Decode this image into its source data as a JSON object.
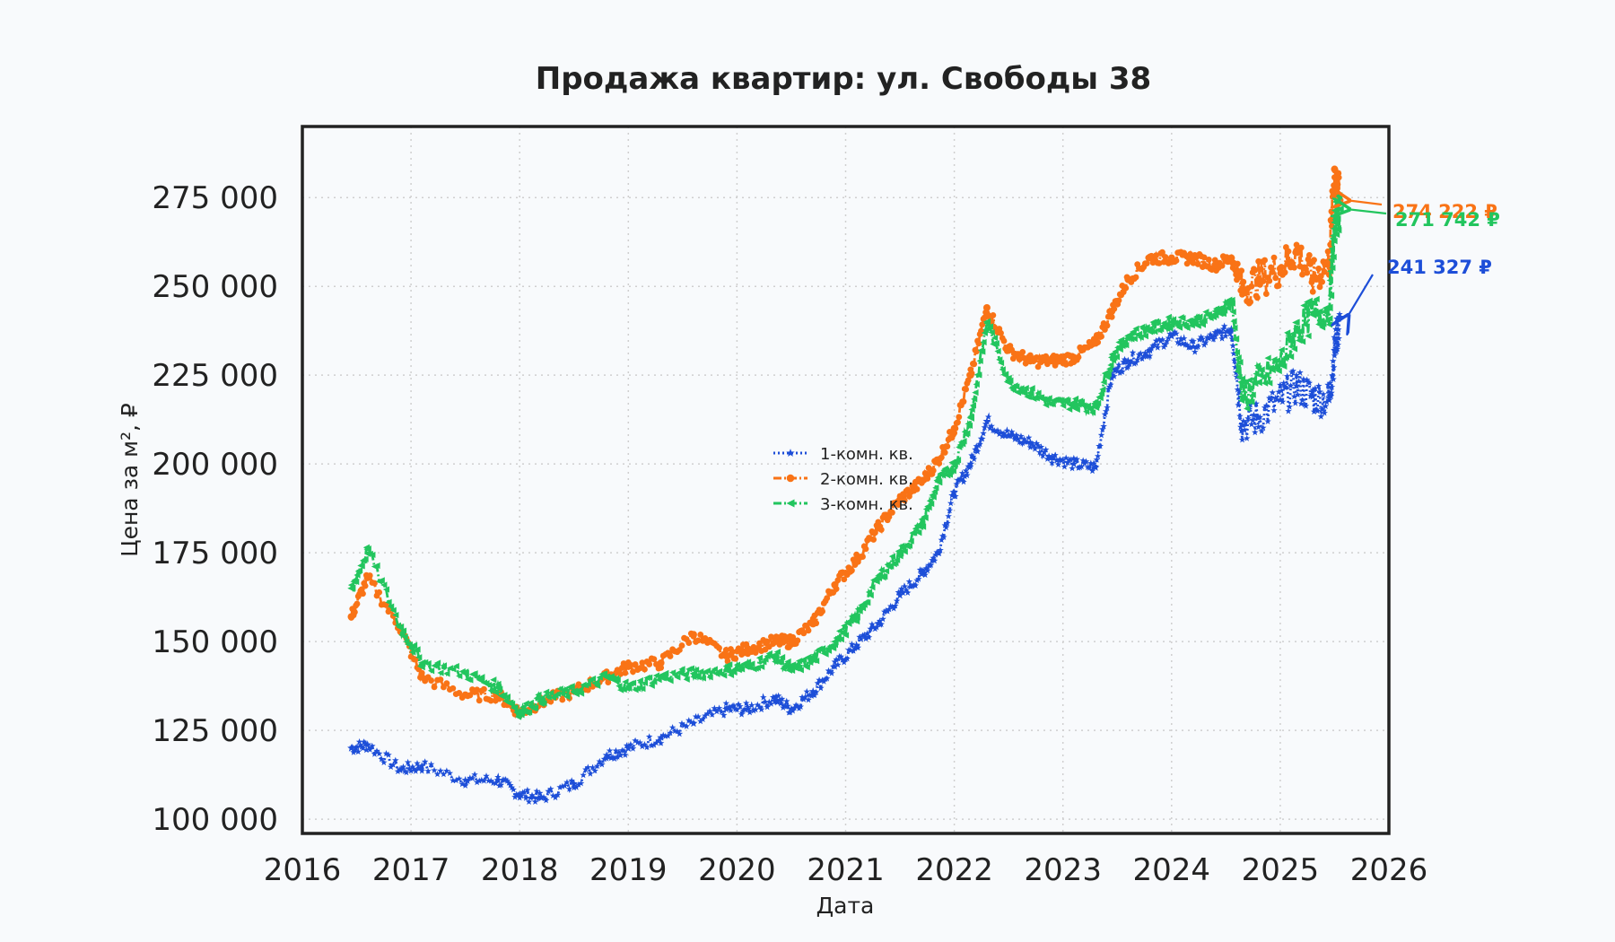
{
  "chart_data": {
    "type": "line",
    "title": "Продажа квартир: ул. Свободы 38",
    "xlabel": "Дата",
    "ylabel": "Цена за м², ₽",
    "xlim": [
      2016.0,
      2026.0
    ],
    "ylim": [
      96000,
      295000
    ],
    "x_ticks": [
      2016,
      2017,
      2018,
      2019,
      2020,
      2021,
      2022,
      2023,
      2024,
      2025,
      2026
    ],
    "x_tick_labels": [
      "2016",
      "2017",
      "2018",
      "2019",
      "2020",
      "2021",
      "2022",
      "2023",
      "2024",
      "2025",
      "2026"
    ],
    "y_ticks": [
      100000,
      125000,
      150000,
      175000,
      200000,
      225000,
      250000,
      275000
    ],
    "y_tick_labels": [
      "100 000",
      "125 000",
      "150 000",
      "175 000",
      "200 000",
      "225 000",
      "250 000",
      "275 000"
    ],
    "grid": true,
    "legend_position": "center",
    "x_key": [
      2016.45,
      2016.6,
      2016.9,
      2017.1,
      2017.5,
      2017.8,
      2018.0,
      2018.2,
      2018.5,
      2018.8,
      2019.0,
      2019.3,
      2019.6,
      2019.9,
      2020.1,
      2020.35,
      2020.5,
      2020.7,
      2020.9,
      2021.1,
      2021.3,
      2021.5,
      2021.7,
      2021.85,
      2022.0,
      2022.15,
      2022.3,
      2022.5,
      2022.7,
      2022.9,
      2023.1,
      2023.3,
      2023.45,
      2023.6,
      2023.8,
      2024.0,
      2024.2,
      2024.4,
      2024.55,
      2024.65,
      2024.8,
      2025.0,
      2025.15,
      2025.3,
      2025.45,
      2025.5,
      2025.55
    ],
    "series": [
      {
        "name": "1-комн. кв.",
        "color": "#1d4ed8",
        "marker": "star",
        "line_style": "dotted",
        "values": [
          120000,
          121000,
          114000,
          115000,
          111000,
          111000,
          107000,
          106000,
          110000,
          118000,
          120000,
          123000,
          127000,
          131000,
          131000,
          134000,
          131000,
          136000,
          143000,
          149000,
          155000,
          163000,
          169000,
          175000,
          192000,
          200000,
          212000,
          208000,
          206000,
          202000,
          200000,
          199000,
          225000,
          229000,
          232000,
          236000,
          233000,
          236000,
          238000,
          211000,
          213000,
          218000,
          222000,
          219000,
          218000,
          232000,
          241327
        ]
      },
      {
        "name": "2-комн. кв.",
        "color": "#f97316",
        "marker": "pentagon",
        "line_style": "dashdot",
        "values": [
          157000,
          168000,
          154000,
          140000,
          135000,
          135000,
          130000,
          133000,
          136000,
          140000,
          143000,
          144000,
          152000,
          146000,
          148000,
          150000,
          150000,
          155000,
          166000,
          173000,
          182000,
          190000,
          195000,
          201000,
          210000,
          225000,
          244000,
          232000,
          229000,
          229000,
          230000,
          234000,
          243000,
          252000,
          258000,
          258000,
          258000,
          256000,
          258000,
          249000,
          252000,
          255000,
          260000,
          252000,
          257000,
          283000,
          274222
        ]
      },
      {
        "name": "3-комн. кв.",
        "color": "#22c55e",
        "marker": "triangle-left",
        "line_style": "dashdot",
        "values": [
          165000,
          176000,
          154000,
          144000,
          141000,
          137000,
          130000,
          134000,
          136000,
          140000,
          137000,
          140000,
          141000,
          142000,
          143000,
          146000,
          142000,
          145000,
          150000,
          157000,
          168000,
          175000,
          183000,
          195000,
          200000,
          213000,
          240000,
          223000,
          220000,
          217000,
          217000,
          216000,
          230000,
          236000,
          238000,
          240000,
          240000,
          242000,
          246000,
          219000,
          223000,
          228000,
          238000,
          242000,
          244000,
          268000,
          271742
        ]
      }
    ],
    "annotations": [
      {
        "series": "2-комн. кв.",
        "text": "274 222 ₽",
        "color": "#f97316"
      },
      {
        "series": "3-комн. кв.",
        "text": "271 742 ₽",
        "color": "#22c55e"
      },
      {
        "series": "1-комн. кв.",
        "text": "241 327 ₽",
        "color": "#1d4ed8"
      }
    ]
  }
}
